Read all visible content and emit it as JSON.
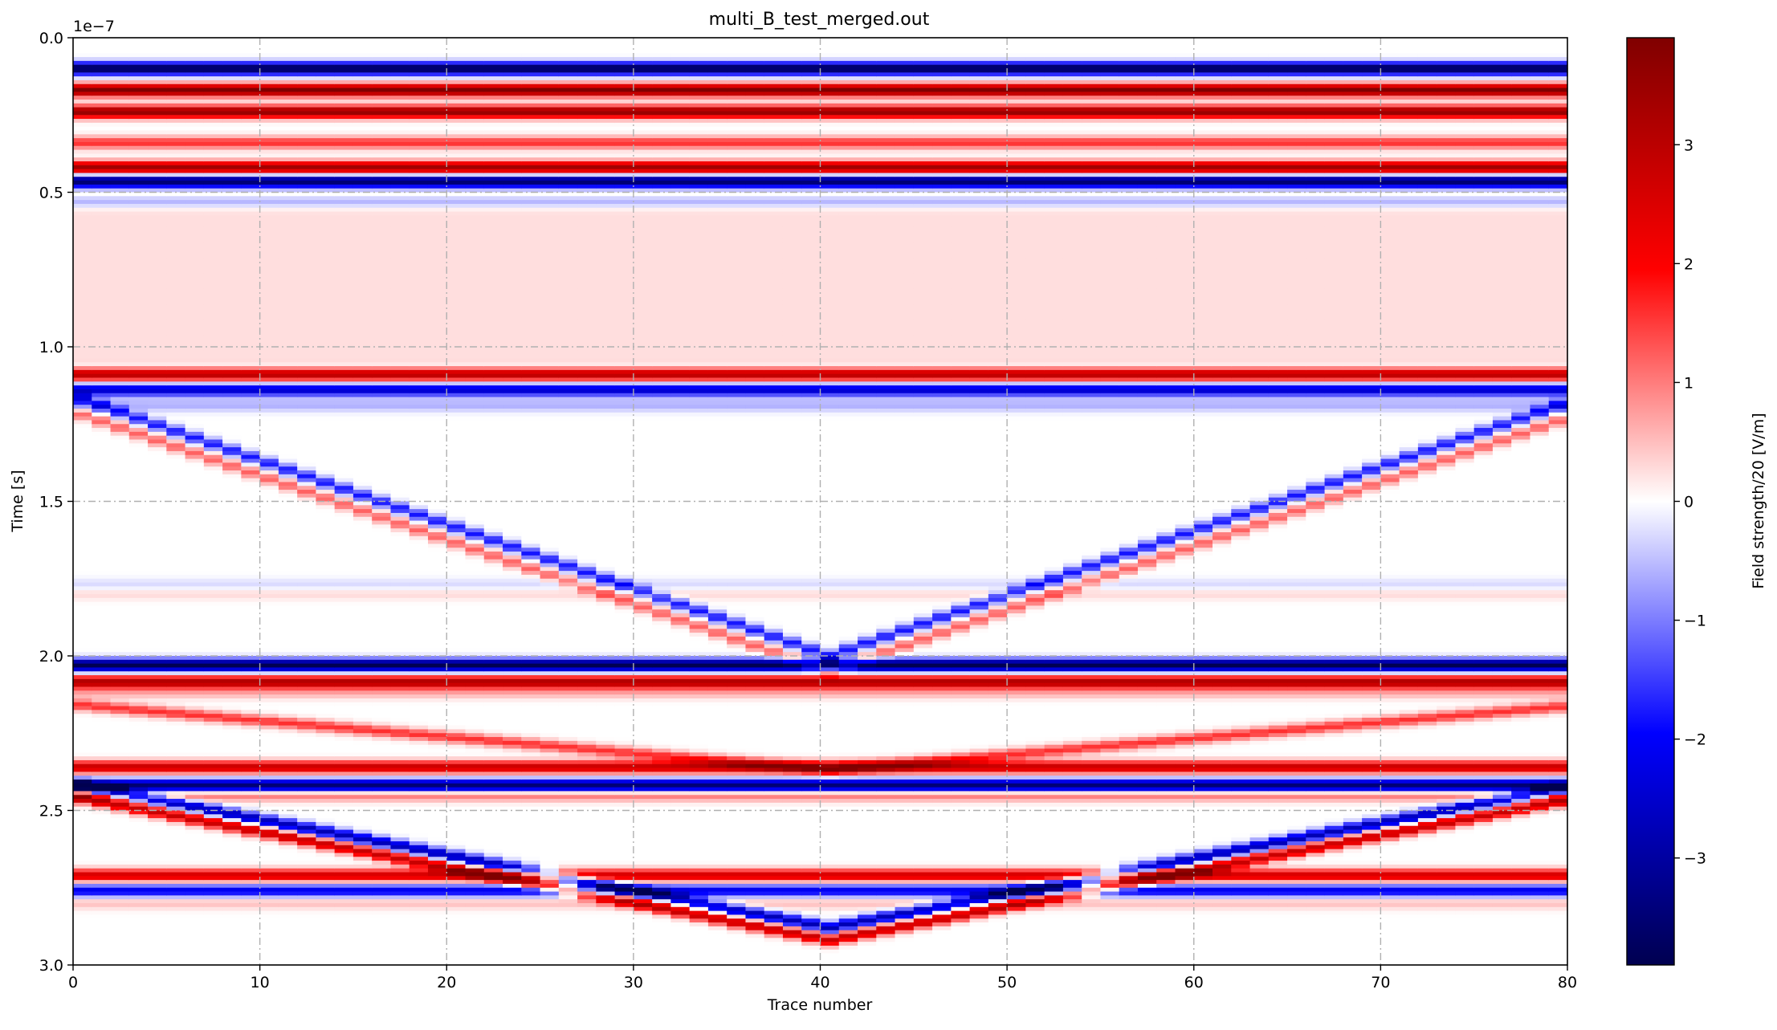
{
  "chart_data": {
    "type": "heatmap",
    "title": "multi_B_test_merged.out",
    "xlabel": "Trace number",
    "ylabel": "Time [s]",
    "y_offset_text": "1e−7",
    "xlim": [
      0,
      80
    ],
    "ylim": [
      3.0,
      0.0
    ],
    "y_scale": 1e-07,
    "y_inverted": true,
    "grid": true,
    "x_ticks": [
      0,
      10,
      20,
      30,
      40,
      50,
      60,
      70,
      80
    ],
    "x_tick_labels": [
      "0",
      "10",
      "20",
      "30",
      "40",
      "50",
      "60",
      "70",
      "80"
    ],
    "y_ticks": [
      0.0,
      0.5,
      1.0,
      1.5,
      2.0,
      2.5,
      3.0
    ],
    "y_tick_labels": [
      "0.0",
      "0.5",
      "1.0",
      "1.5",
      "2.0",
      "2.5",
      "3.0"
    ],
    "colorbar": {
      "label": "Field strength/20 [V/m]",
      "colormap": "seismic",
      "vmin": -3.9,
      "vmax": 3.9,
      "ticks": [
        3,
        2,
        1,
        0,
        -1,
        -2,
        -3
      ],
      "tick_labels": [
        "3",
        "2",
        "1",
        "0",
        "−1",
        "−2",
        "−3"
      ]
    },
    "num_traces": 81,
    "horizontal_bands": [
      {
        "t": 0.1,
        "value": -3.9
      },
      {
        "t": 0.17,
        "value": 3.9
      },
      {
        "t": 0.24,
        "value": 3.6
      },
      {
        "t": 0.34,
        "value": 1.6
      },
      {
        "t": 0.42,
        "value": 3.4
      },
      {
        "t": 0.465,
        "value": -3.6
      },
      {
        "t": 0.53,
        "value": -0.8
      },
      {
        "t": 1.09,
        "value": 3.0
      },
      {
        "t": 1.14,
        "value": -2.5
      },
      {
        "t": 1.19,
        "value": -0.6
      },
      {
        "t": 1.77,
        "value": -0.3
      },
      {
        "t": 1.8,
        "value": 0.3
      },
      {
        "t": 2.03,
        "value": -3.9
      },
      {
        "t": 2.085,
        "value": 3.2
      },
      {
        "t": 2.12,
        "value": 0.6
      },
      {
        "t": 2.36,
        "value": 2.8
      },
      {
        "t": 2.42,
        "value": -3.6
      },
      {
        "t": 2.45,
        "value": 1.2
      },
      {
        "t": 2.71,
        "value": 2.6
      },
      {
        "t": 2.76,
        "value": -2.2
      },
      {
        "t": 2.8,
        "value": 0.5
      }
    ],
    "diagonal_events": [
      {
        "t_start": 1.17,
        "t_mid": 2.0,
        "value": -1.8
      },
      {
        "t_start": 1.22,
        "t_mid": 2.05,
        "value": 1.2
      },
      {
        "t_start": 2.16,
        "t_mid": 2.37,
        "value": 1.6
      },
      {
        "t_start": 2.42,
        "t_mid": 2.88,
        "value": -2.8
      },
      {
        "t_start": 2.46,
        "t_mid": 2.92,
        "value": 2.8
      }
    ]
  }
}
